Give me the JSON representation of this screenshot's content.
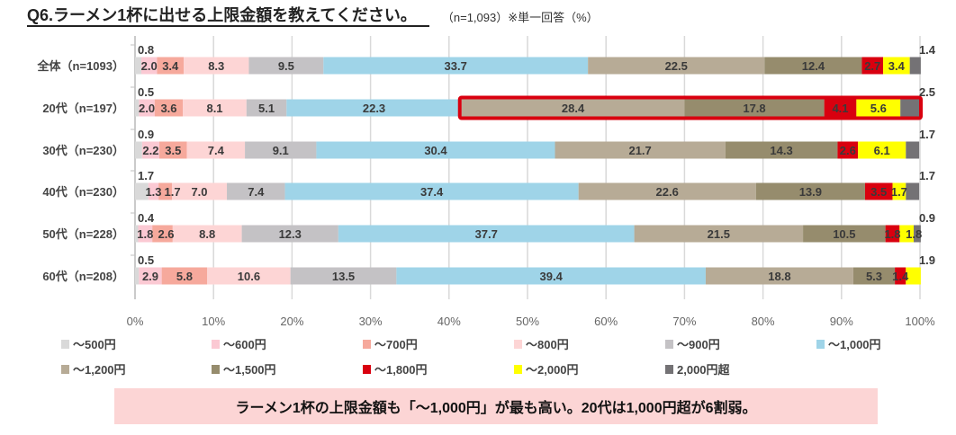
{
  "header": {
    "title": "Q6.ラーメン1杯に出せる上限金額を教えてください。",
    "subtitle": "（n=1,093）※単一回答（%）"
  },
  "note": "ラーメン1杯の上限金額も「～1,000円」が最も高い。20代は1,000円超が6割弱。",
  "chart_data": {
    "type": "bar",
    "orientation": "horizontal",
    "stacked": "percent",
    "categories": [
      "全体（n=1093）",
      "20代（n=197）",
      "30代（n=230）",
      "40代（n=230）",
      "50代（n=228）",
      "60代（n=208）"
    ],
    "series": [
      {
        "name": "～500円",
        "color": "#d9d9d9",
        "values": [
          0.8,
          0.5,
          0.9,
          1.7,
          0.4,
          0.5
        ]
      },
      {
        "name": "～600円",
        "color": "#fbc9d3",
        "values": [
          2.0,
          2.0,
          2.2,
          1.3,
          1.8,
          2.9
        ]
      },
      {
        "name": "～700円",
        "color": "#f6a99c",
        "values": [
          3.4,
          3.6,
          3.5,
          1.7,
          2.6,
          5.8
        ]
      },
      {
        "name": "～800円",
        "color": "#fdd5d5",
        "values": [
          8.3,
          8.1,
          7.4,
          7.0,
          8.8,
          10.6
        ]
      },
      {
        "name": "～900円",
        "color": "#c4c2c5",
        "values": [
          9.5,
          5.1,
          9.1,
          7.4,
          12.3,
          13.5
        ]
      },
      {
        "name": "～1,000円",
        "color": "#9fd4e8",
        "values": [
          33.7,
          22.3,
          30.4,
          37.4,
          37.7,
          39.4
        ]
      },
      {
        "name": "～1,200円",
        "color": "#b7ab96",
        "values": [
          22.5,
          28.4,
          21.7,
          22.6,
          21.5,
          18.8
        ]
      },
      {
        "name": "～1,500円",
        "color": "#968c6d",
        "values": [
          12.4,
          17.8,
          14.3,
          13.9,
          10.5,
          5.3
        ]
      },
      {
        "name": "～1,800円",
        "color": "#d9000f",
        "values": [
          2.7,
          4.1,
          2.6,
          3.5,
          1.8,
          1.4
        ]
      },
      {
        "name": "～2,000円",
        "color": "#ffff00",
        "values": [
          3.4,
          5.6,
          6.1,
          1.7,
          1.8,
          1.9
        ]
      },
      {
        "name": "2,000円超",
        "color": "#747275",
        "values": [
          1.4,
          2.5,
          1.7,
          1.7,
          0.9,
          0
        ]
      }
    ],
    "xticks": [
      "0%",
      "10%",
      "20%",
      "30%",
      "40%",
      "50%",
      "60%",
      "70%",
      "80%",
      "90%",
      "100%"
    ],
    "xlim": [
      0,
      100
    ],
    "grid": true,
    "legend": "bottom",
    "highlight": {
      "category": "20代（n=197）",
      "from_series": "～1,200円",
      "color": "#d9000f"
    }
  }
}
